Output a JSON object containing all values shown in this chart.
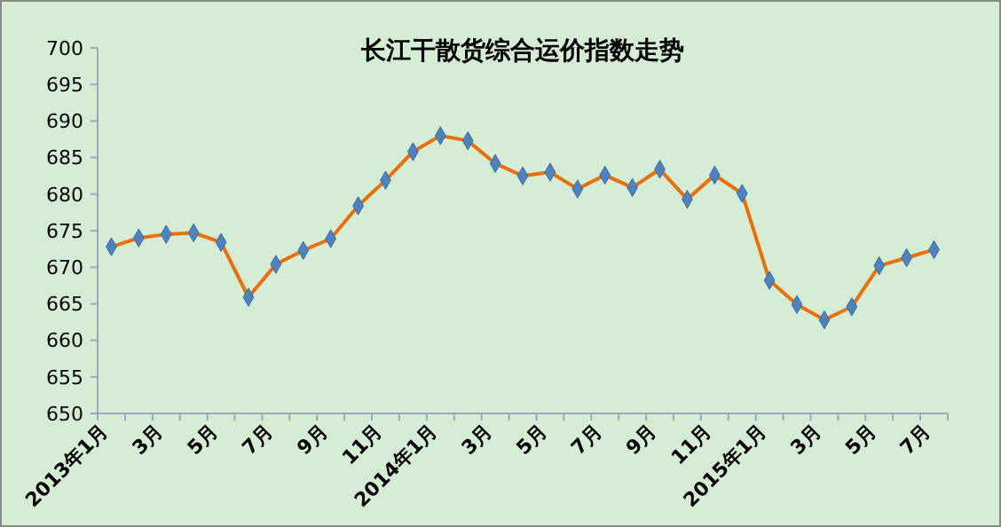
{
  "chart_data": {
    "type": "line",
    "title": "长江干散货综合运价指数走势",
    "categories": [
      "2013年1月",
      null,
      "3月",
      null,
      "5月",
      null,
      "7月",
      null,
      "9月",
      null,
      "11月",
      null,
      "2014年1月",
      null,
      "3月",
      null,
      "5月",
      null,
      "7月",
      null,
      "9月",
      null,
      "11月",
      null,
      "2015年1月",
      null,
      "3月",
      null,
      "5月",
      null,
      "7月"
    ],
    "series": [
      {
        "color": "#e8700c",
        "values": [
          672.8,
          674,
          674.5,
          674.7,
          673.4,
          665.9,
          670.4,
          672.3,
          673.9,
          678.4,
          681.9,
          685.8,
          688,
          687.3,
          684.2,
          682.5,
          683,
          680.7,
          682.6,
          680.9,
          683.4,
          679.3,
          682.6,
          680.1,
          668.2,
          664.9,
          662.8,
          664.6,
          670.2,
          671.3,
          672.4
        ]
      }
    ],
    "ylim": [
      650,
      700
    ],
    "yticks": [
      650,
      655,
      660,
      665,
      670,
      675,
      680,
      685,
      690,
      695,
      700
    ],
    "grid": false,
    "marker": "diamond",
    "line_style": "solid"
  }
}
